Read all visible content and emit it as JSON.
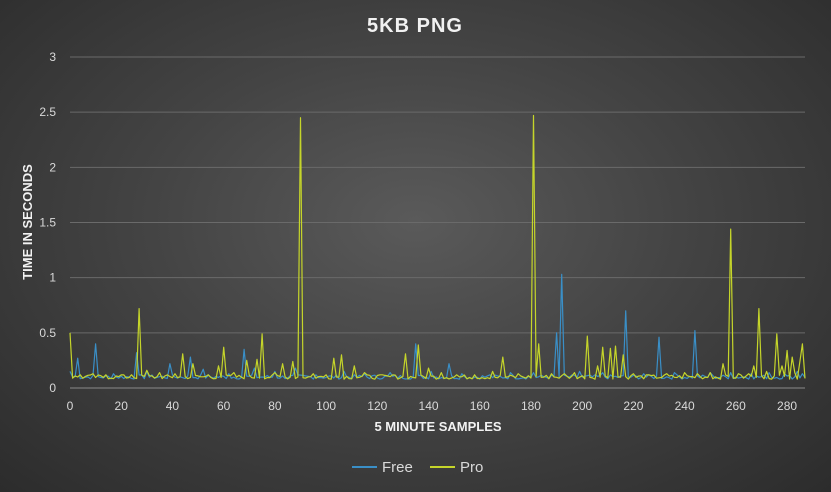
{
  "chart_data": {
    "type": "line",
    "title": "5KB PNG",
    "xlabel": "5 MINUTE SAMPLES",
    "ylabel": "TIME IN SECONDS",
    "xlim": [
      0,
      287
    ],
    "ylim": [
      0,
      3
    ],
    "x_ticks": [
      0,
      20,
      40,
      60,
      80,
      100,
      120,
      140,
      160,
      180,
      200,
      220,
      240,
      260,
      280
    ],
    "y_ticks": [
      0,
      0.5,
      1,
      1.5,
      2,
      2.5,
      3
    ],
    "y_tick_labels": [
      "0",
      "0.5",
      "1",
      "1.5",
      "2",
      "2.5",
      "3"
    ],
    "grid": "horizontal",
    "legend_position": "bottom",
    "series": [
      {
        "name": "Free",
        "color": "#3a8fc7",
        "baseline": 0.1,
        "spikes": [
          [
            0,
            0.15
          ],
          [
            3,
            0.27
          ],
          [
            10,
            0.4
          ],
          [
            17,
            0.13
          ],
          [
            26,
            0.32
          ],
          [
            30,
            0.15
          ],
          [
            39,
            0.22
          ],
          [
            47,
            0.28
          ],
          [
            52,
            0.17
          ],
          [
            62,
            0.13
          ],
          [
            68,
            0.35
          ],
          [
            72,
            0.18
          ],
          [
            80,
            0.15
          ],
          [
            88,
            0.18
          ],
          [
            96,
            0.12
          ],
          [
            107,
            0.15
          ],
          [
            115,
            0.13
          ],
          [
            125,
            0.14
          ],
          [
            135,
            0.4
          ],
          [
            141,
            0.15
          ],
          [
            148,
            0.22
          ],
          [
            153,
            0.13
          ],
          [
            164,
            0.12
          ],
          [
            172,
            0.14
          ],
          [
            181,
            0.14
          ],
          [
            190,
            0.5
          ],
          [
            192,
            1.03
          ],
          [
            199,
            0.15
          ],
          [
            208,
            0.14
          ],
          [
            217,
            0.7
          ],
          [
            224,
            0.13
          ],
          [
            230,
            0.46
          ],
          [
            236,
            0.14
          ],
          [
            244,
            0.52
          ],
          [
            250,
            0.14
          ],
          [
            258,
            0.14
          ],
          [
            266,
            0.13
          ],
          [
            273,
            0.14
          ],
          [
            279,
            0.13
          ],
          [
            284,
            0.15
          ],
          [
            286,
            0.13
          ]
        ]
      },
      {
        "name": "Pro",
        "color": "#c5d52a",
        "baseline": 0.1,
        "spikes": [
          [
            0,
            0.5
          ],
          [
            4,
            0.12
          ],
          [
            9,
            0.13
          ],
          [
            14,
            0.12
          ],
          [
            20,
            0.12
          ],
          [
            24,
            0.12
          ],
          [
            27,
            0.72
          ],
          [
            30,
            0.16
          ],
          [
            35,
            0.14
          ],
          [
            41,
            0.13
          ],
          [
            44,
            0.31
          ],
          [
            48,
            0.22
          ],
          [
            54,
            0.12
          ],
          [
            58,
            0.2
          ],
          [
            60,
            0.37
          ],
          [
            64,
            0.14
          ],
          [
            69,
            0.25
          ],
          [
            73,
            0.26
          ],
          [
            75,
            0.49
          ],
          [
            80,
            0.14
          ],
          [
            83,
            0.22
          ],
          [
            87,
            0.24
          ],
          [
            90,
            2.45
          ],
          [
            95,
            0.13
          ],
          [
            100,
            0.12
          ],
          [
            103,
            0.27
          ],
          [
            106,
            0.3
          ],
          [
            111,
            0.2
          ],
          [
            115,
            0.14
          ],
          [
            121,
            0.12
          ],
          [
            126,
            0.12
          ],
          [
            131,
            0.31
          ],
          [
            136,
            0.39
          ],
          [
            140,
            0.18
          ],
          [
            145,
            0.14
          ],
          [
            151,
            0.12
          ],
          [
            158,
            0.12
          ],
          [
            165,
            0.15
          ],
          [
            169,
            0.28
          ],
          [
            175,
            0.13
          ],
          [
            181,
            2.47
          ],
          [
            183,
            0.4
          ],
          [
            188,
            0.13
          ],
          [
            193,
            0.13
          ],
          [
            197,
            0.14
          ],
          [
            202,
            0.47
          ],
          [
            206,
            0.2
          ],
          [
            208,
            0.37
          ],
          [
            211,
            0.36
          ],
          [
            213,
            0.38
          ],
          [
            216,
            0.3
          ],
          [
            220,
            0.13
          ],
          [
            226,
            0.12
          ],
          [
            233,
            0.13
          ],
          [
            240,
            0.14
          ],
          [
            245,
            0.13
          ],
          [
            250,
            0.14
          ],
          [
            255,
            0.22
          ],
          [
            258,
            1.44
          ],
          [
            261,
            0.13
          ],
          [
            265,
            0.13
          ],
          [
            267,
            0.2
          ],
          [
            269,
            0.72
          ],
          [
            272,
            0.15
          ],
          [
            276,
            0.49
          ],
          [
            278,
            0.2
          ],
          [
            280,
            0.34
          ],
          [
            282,
            0.28
          ],
          [
            283,
            0.14
          ],
          [
            285,
            0.24
          ],
          [
            286,
            0.4
          ]
        ]
      }
    ]
  }
}
